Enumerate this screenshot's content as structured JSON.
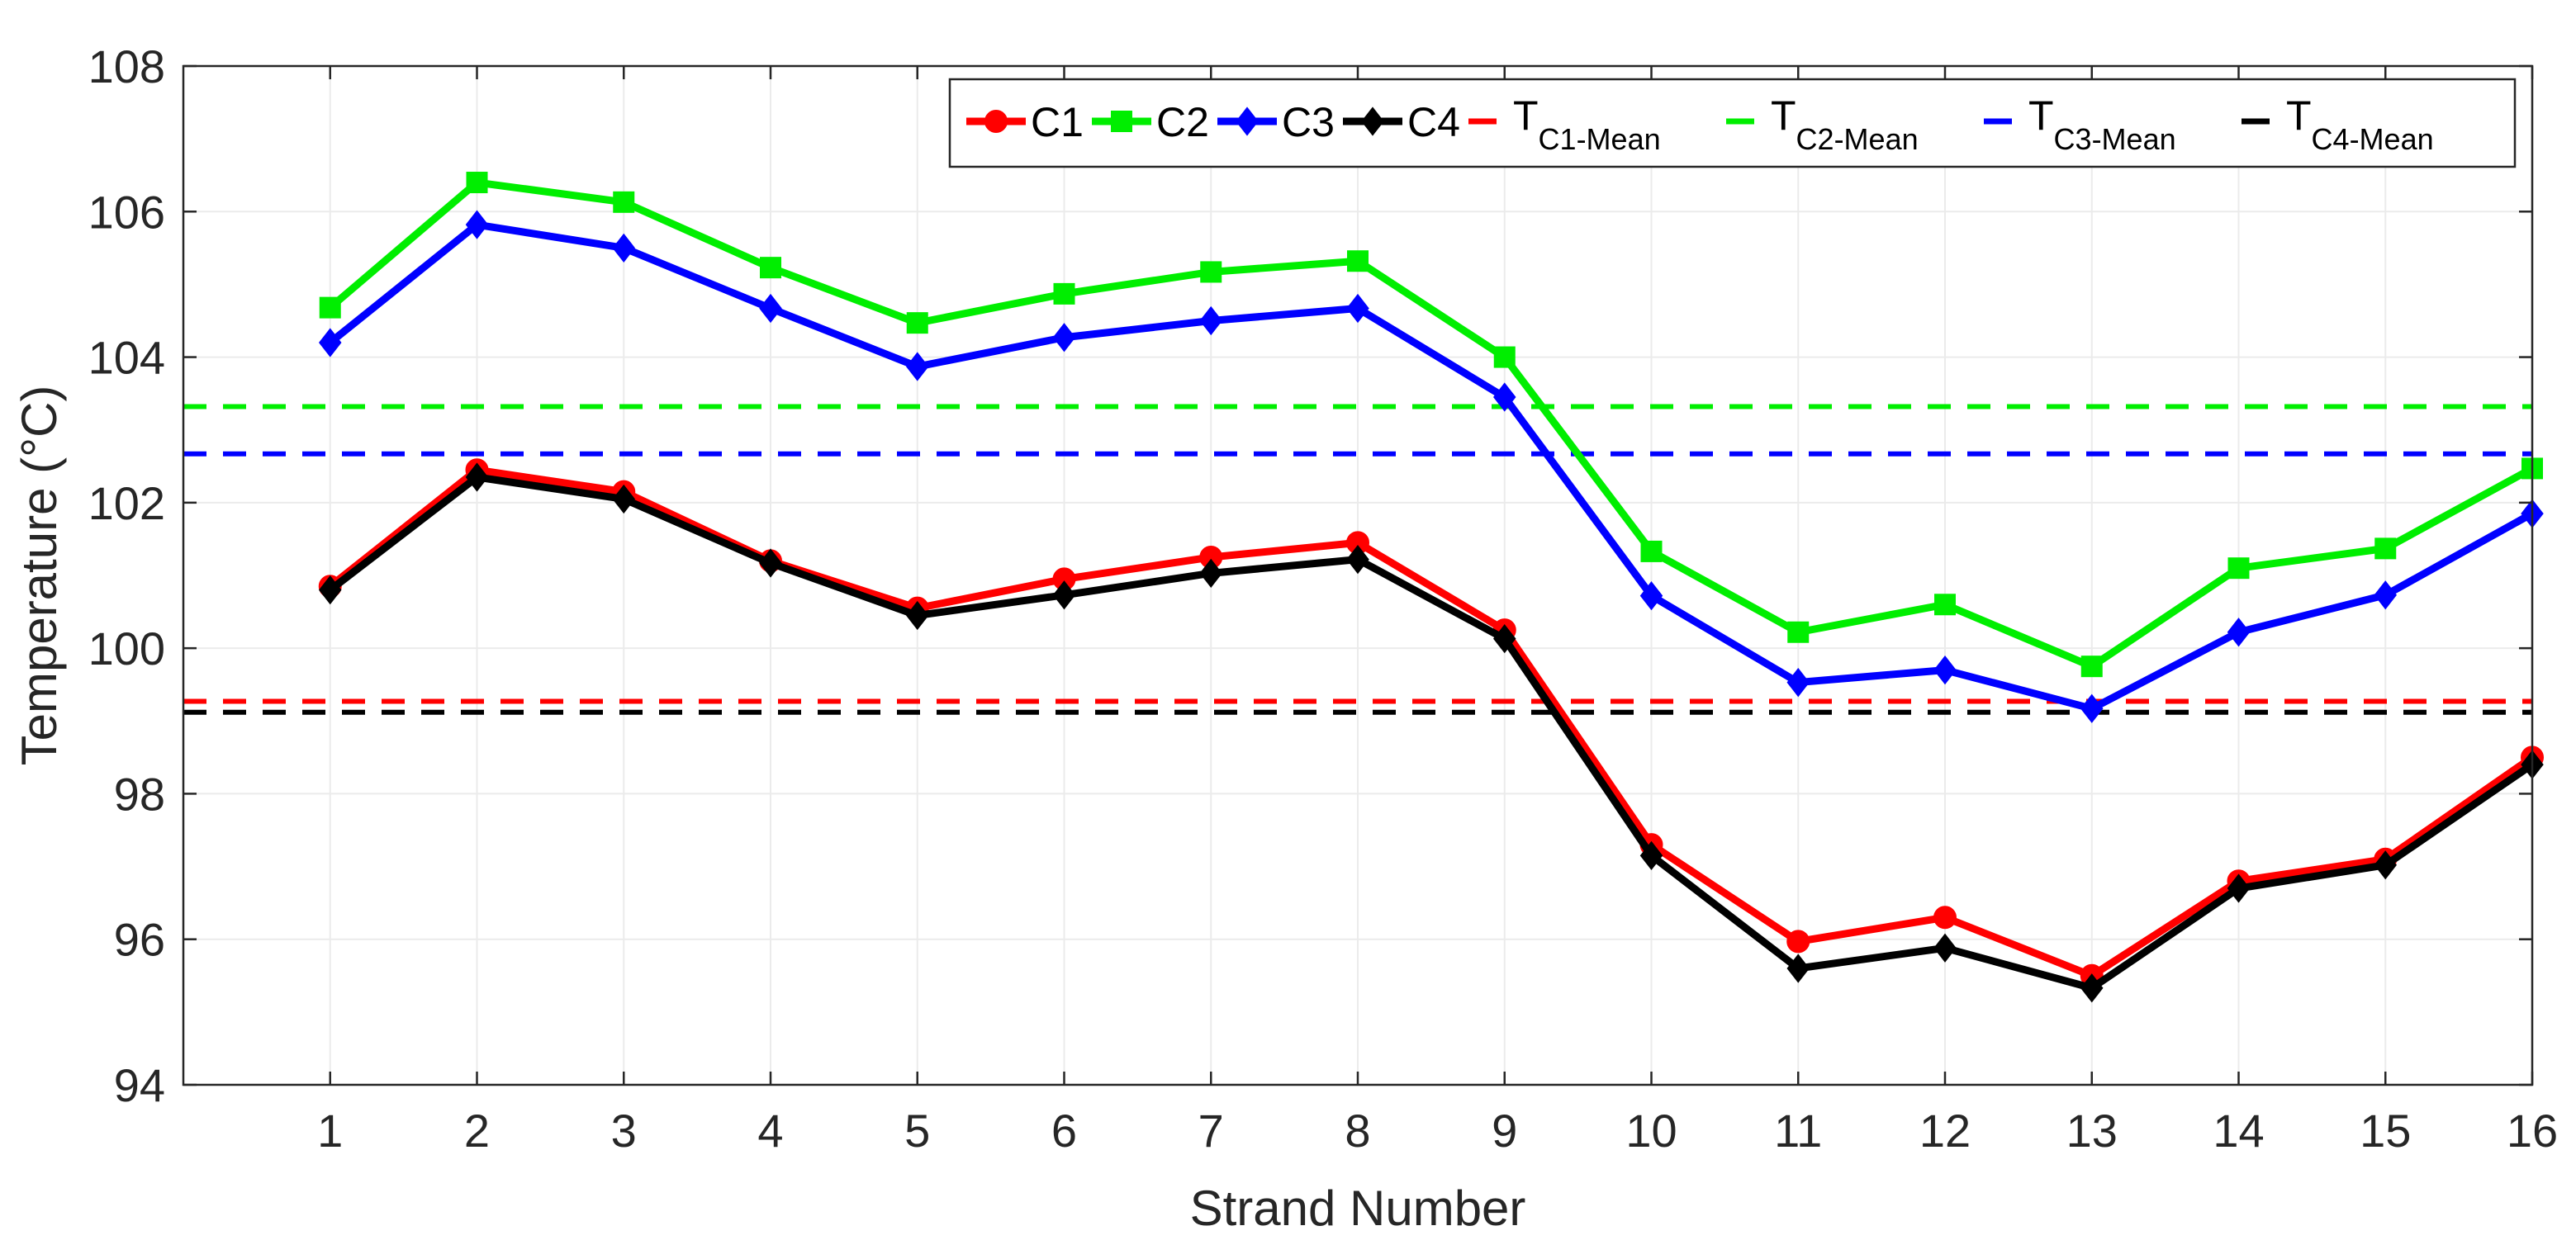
{
  "chart_data": {
    "type": "line",
    "xlabel": "Strand Number",
    "ylabel": "Temperature (°C)",
    "xlim": [
      0,
      16
    ],
    "ylim": [
      94,
      108
    ],
    "x": [
      1,
      2,
      3,
      4,
      5,
      6,
      7,
      8,
      9,
      10,
      11,
      12,
      13,
      14,
      15,
      16
    ],
    "x_ticks": [
      1,
      2,
      3,
      4,
      5,
      6,
      7,
      8,
      9,
      10,
      11,
      12,
      13,
      14,
      15,
      16
    ],
    "y_ticks": [
      94,
      96,
      98,
      100,
      102,
      104,
      106,
      108
    ],
    "grid": true,
    "legend_position": "top-right",
    "legend_layout": "horizontal",
    "series": [
      {
        "name": "C1",
        "color": "#ff0000",
        "marker": "circle",
        "values": [
          100.85,
          102.45,
          102.15,
          101.2,
          100.55,
          100.95,
          101.25,
          101.45,
          100.25,
          97.3,
          95.97,
          96.3,
          95.5,
          96.8,
          97.1,
          98.5
        ]
      },
      {
        "name": "C2",
        "color": "#00ee00",
        "marker": "square",
        "values": [
          104.68,
          106.4,
          106.13,
          105.23,
          104.47,
          104.87,
          105.17,
          105.32,
          104.0,
          101.33,
          100.22,
          100.6,
          99.75,
          101.1,
          101.37,
          102.47
        ]
      },
      {
        "name": "C3",
        "color": "#0000ff",
        "marker": "diamond",
        "values": [
          104.2,
          105.82,
          105.5,
          104.67,
          103.87,
          104.27,
          104.5,
          104.67,
          103.45,
          100.72,
          99.53,
          99.7,
          99.17,
          100.22,
          100.73,
          101.85
        ]
      },
      {
        "name": "C4",
        "color": "#000000",
        "marker": "diamond",
        "values": [
          100.8,
          102.35,
          102.05,
          101.17,
          100.45,
          100.73,
          101.03,
          101.22,
          100.13,
          97.15,
          95.6,
          95.88,
          95.33,
          96.7,
          97.02,
          98.4
        ]
      }
    ],
    "mean_lines": [
      {
        "label_main": "T",
        "label_sub": "C1-Mean",
        "color": "#ff0000",
        "value": 99.27
      },
      {
        "label_main": "T",
        "label_sub": "C2-Mean",
        "color": "#00ee00",
        "value": 103.32
      },
      {
        "label_main": "T",
        "label_sub": "C3-Mean",
        "color": "#0000ff",
        "value": 102.67
      },
      {
        "label_main": "T",
        "label_sub": "C4-Mean",
        "color": "#000000",
        "value": 99.12
      }
    ]
  }
}
